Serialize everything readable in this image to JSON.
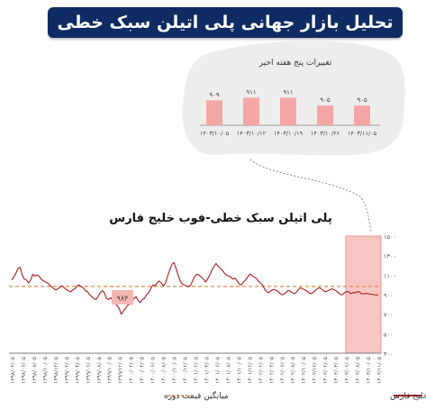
{
  "header": {
    "title": "تحلیل بازار جهانی پلی اتیلن سبک خطی"
  },
  "chart_data": [
    {
      "type": "bar",
      "title": "تغییرات پنج هفته اخیر",
      "categories": [
        "۱۴۰۳/۱۰/۰۵",
        "۱۴۰۳/۱۰/۱۲",
        "۱۴۰۳/۱۰/۱۹",
        "۱۴۰۳/۱۰/۲۶",
        "۱۴۰۳/۱۱/۰۵"
      ],
      "values": [
        909,
        911,
        911,
        905,
        905
      ],
      "value_labels": [
        "۹۰۹",
        "۹۱۱",
        "۹۱۱",
        "۹۰۵",
        "۹۰۵"
      ],
      "colors": {
        "bar": "#f4a6a6",
        "background": "#eeeeee"
      }
    },
    {
      "type": "line",
      "title": "پلی اتیلن سبک خطی-فوب خلیج فارس",
      "y_ticks": [
        300,
        500,
        700,
        900,
        1100,
        1300,
        1500
      ],
      "y_tick_labels": [
        "۳۰۰",
        "۵۰۰",
        "۷۰۰",
        "۹۰۰",
        "۱۱۰۰",
        "۱۳۰۰",
        "۱۵۰۰"
      ],
      "ylim": [
        300,
        1500
      ],
      "x_tick_labels": [
        "۱۳۹۸/۰۴/۰۵",
        "۱۳۹۸/۰۶/۰۵",
        "۱۳۹۸/۰۸/۰۵",
        "۱۳۹۸/۱۰/۰۵",
        "۱۳۹۸/۱۲/۰۵",
        "۱۳۹۹/۰۲/۰۵",
        "۱۳۹۹/۰۴/۰۵",
        "۱۳۹۹/۰۶/۰۵",
        "۱۳۹۹/۰۸/۰۵",
        "۱۳۹۹/۱۰/۰۵",
        "۱۳۹۹/۱۲/۰۵",
        "۱۴۰۰/۰۲/۰۵",
        "۱۴۰۰/۰۴/۰۵",
        "۱۴۰۰/۰۶/۰۵",
        "۱۴۰۰/۰۸/۰۵",
        "۱۴۰۰/۱۰/۰۵",
        "۱۴۰۰/۱۲/۰۵",
        "۱۴۰۱/۰۲/۰۵",
        "۱۴۰۱/۰۴/۰۵",
        "۱۴۰۱/۰۶/۰۵",
        "۱۴۰۱/۰۸/۰۵",
        "۱۴۰۱/۱۰/۰۵",
        "۱۴۰۱/۱۲/۰۵",
        "۱۴۰۲/۰۲/۰۵",
        "۱۴۰۲/۰۴/۰۵",
        "۱۴۰۲/۰۶/۰۵",
        "۱۴۰۲/۰۸/۰۵",
        "۱۴۰۲/۱۰/۰۵",
        "۱۴۰۲/۱۲/۰۵",
        "۱۴۰۳/۰۲/۰۵",
        "۱۴۰۳/۰۴/۰۵",
        "۱۴۰۳/۰۶/۰۵",
        "۱۴۰۳/۰۸/۰۵",
        "۱۴۰۳/۱۰/۰۵",
        "۱۴۰۳/۱۱/۰۵"
      ],
      "series": [
        {
          "name": "پلی اتیلن سبک خطی-فوب خلیج فارس",
          "color": "#b01c1c",
          "values": [
            1050,
            1080,
            1120,
            1170,
            1180,
            1100,
            1060,
            1050,
            1020,
            1050,
            1110,
            1090,
            1100,
            1090,
            1060,
            1040,
            1030,
            1020,
            1000,
            980,
            960,
            950,
            960,
            980,
            990,
            970,
            950,
            940,
            930,
            950,
            960,
            990,
            1000,
            980,
            970,
            940,
            930,
            900,
            880,
            860,
            850,
            880,
            920,
            940,
            920,
            860,
            850,
            870,
            840,
            810,
            790,
            760,
            700,
            730,
            760,
            790,
            800,
            830,
            860,
            880,
            840,
            820,
            850,
            860,
            900,
            920,
            960,
            1000,
            990,
            1020,
            1040,
            1020,
            990,
            1020,
            1090,
            1150,
            1210,
            1230,
            1170,
            1100,
            1040,
            1010,
            1000,
            990,
            980,
            1000,
            1050,
            1090,
            1110,
            1100,
            1080,
            1060,
            1030,
            1060,
            1100,
            1150,
            1190,
            1220,
            1190,
            1170,
            1150,
            1120,
            1100,
            1090,
            1080,
            1060,
            1070,
            1040,
            1010,
            1000,
            1030,
            1050,
            1080,
            1110,
            1100,
            1080,
            1070,
            1040,
            1020,
            1000,
            960,
            930,
            920,
            940,
            950,
            950,
            940,
            920,
            900,
            900,
            920,
            940,
            940,
            920,
            910,
            920,
            950,
            970,
            960,
            950,
            940,
            920,
            910,
            920,
            940,
            960,
            970,
            960,
            940,
            930,
            940,
            950,
            960,
            950,
            940,
            920,
            900,
            900,
            920,
            930,
            930,
            910,
            920,
            920,
            930,
            930,
            910,
            909,
            911,
            911,
            905,
            905,
            900,
            895,
            900
          ]
        }
      ],
      "average_line": {
        "name": "میانگین قیمت دوره",
        "value": 984,
        "color": "#e2884e"
      },
      "annotation": {
        "label": "۹۸۴"
      },
      "highlight": "last five weeks shaded pink on the right edge",
      "legend": [
        "پلی اتیلن سبک خطی-فوب خلیج فارس",
        "میانگین قیمت دوره"
      ],
      "legend_position": "bottom"
    }
  ]
}
